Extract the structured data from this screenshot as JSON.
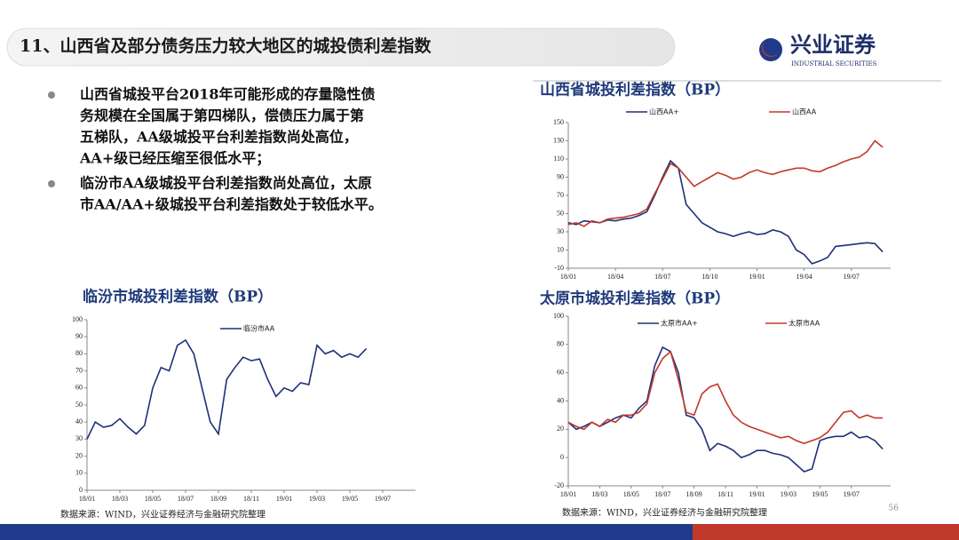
{
  "header": {
    "title": "11、山西省及部分债务压力较大地区的城投债利差指数",
    "logo": "兴业证券",
    "logo_en": "INDUSTRIAL SECURITIES"
  },
  "bullets": [
    [
      "山西省城投平台2018年可能形成的存量隐性债",
      "务规模在全国属于第四梯队，偿债压力属于第",
      "五梯队，AA级城投平台利差指数尚处高位，",
      "AA+级已经压缩至很低水平；"
    ],
    [
      "临汾市AA级城投平台利差指数尚处高位，太原",
      "市AA/AA+级城投平台利差指数处于较低水平。"
    ]
  ],
  "sources": [
    "数据来源：WIND，兴业证券经济与金融研究院整理",
    "数据来源：WIND，兴业证券经济与金融研究院整理"
  ],
  "page_number": 56,
  "chart_data": [
    {
      "type": "line",
      "title": "山西省城投利差指数（BP）",
      "x": [
        0,
        0.5,
        1,
        1.5,
        2,
        2.5,
        3,
        3.5,
        4,
        4.5,
        5,
        5.5,
        6,
        6.5,
        7,
        7.5,
        8,
        8.5,
        9,
        9.5,
        10,
        10.5,
        11,
        11.5,
        12,
        12.5,
        13,
        13.5,
        14,
        14.5,
        15,
        15.5,
        16,
        16.5,
        17,
        17.5,
        18,
        18.5,
        19,
        19.5,
        20
      ],
      "xlim": [
        0,
        20.5
      ],
      "xticks": [
        {
          "value": 0,
          "label": "18/01"
        },
        {
          "value": 3,
          "label": "18/04"
        },
        {
          "value": 6,
          "label": "18/07"
        },
        {
          "value": 9,
          "label": "18/10"
        },
        {
          "value": 12,
          "label": "19/01"
        },
        {
          "value": 15,
          "label": "19/04"
        },
        {
          "value": 18,
          "label": "19/07"
        }
      ],
      "ylim": [
        -10,
        150
      ],
      "yticks": [
        -10,
        10,
        30,
        50,
        70,
        90,
        110,
        130,
        150
      ],
      "series": [
        {
          "name": "山西AA+",
          "color": "#1f2f7a",
          "values": [
            40,
            38,
            42,
            41,
            40,
            43,
            42,
            44,
            45,
            48,
            52,
            70,
            90,
            108,
            100,
            60,
            50,
            40,
            35,
            30,
            28,
            25,
            28,
            30,
            27,
            28,
            32,
            30,
            25,
            10,
            5,
            -5,
            -2,
            2,
            14,
            15,
            16,
            17,
            18,
            17,
            8
          ]
        },
        {
          "name": "山西AA",
          "color": "#c0392b",
          "values": [
            38,
            40,
            36,
            42,
            40,
            44,
            45,
            46,
            48,
            50,
            55,
            72,
            88,
            105,
            100,
            90,
            80,
            85,
            90,
            95,
            92,
            88,
            90,
            95,
            98,
            95,
            93,
            96,
            98,
            100,
            100,
            97,
            96,
            100,
            103,
            107,
            110,
            112,
            118,
            130,
            123
          ]
        }
      ]
    },
    {
      "type": "line",
      "title": "临汾市城投利差指数（BP）",
      "x": [
        0,
        0.5,
        1,
        1.5,
        2,
        2.5,
        3,
        3.5,
        4,
        4.5,
        5,
        5.5,
        6,
        6.5,
        7,
        7.5,
        8,
        8.5,
        9,
        9.5,
        10,
        10.5,
        11,
        11.5,
        12,
        12.5,
        13,
        13.5,
        14,
        14.5,
        15,
        15.5,
        16,
        16.5,
        17
      ],
      "xlim": [
        0,
        20
      ],
      "xticks": [
        {
          "value": 0,
          "label": "18/01"
        },
        {
          "value": 2,
          "label": "18/03"
        },
        {
          "value": 4,
          "label": "18/05"
        },
        {
          "value": 6,
          "label": "18/07"
        },
        {
          "value": 8,
          "label": "18/09"
        },
        {
          "value": 10,
          "label": "18/11"
        },
        {
          "value": 12,
          "label": "19/01"
        },
        {
          "value": 14,
          "label": "19/03"
        },
        {
          "value": 16,
          "label": "19/05"
        },
        {
          "value": 18,
          "label": "19/07"
        }
      ],
      "ylim": [
        0,
        100
      ],
      "yticks": [
        0,
        10,
        20,
        30,
        40,
        50,
        60,
        70,
        80,
        90,
        100
      ],
      "series": [
        {
          "name": "临汾市AA",
          "color": "#1f2f7a",
          "values": [
            30,
            40,
            37,
            38,
            42,
            37,
            33,
            38,
            60,
            72,
            70,
            85,
            88,
            80,
            60,
            40,
            33,
            65,
            72,
            78,
            76,
            77,
            65,
            55,
            60,
            58,
            63,
            62,
            85,
            80,
            82,
            78,
            80,
            78,
            83
          ]
        }
      ]
    },
    {
      "type": "line",
      "title": "太原市城投利差指数（BP）",
      "x": [
        0,
        0.5,
        1,
        1.5,
        2,
        2.5,
        3,
        3.5,
        4,
        4.5,
        5,
        5.5,
        6,
        6.5,
        7,
        7.5,
        8,
        8.5,
        9,
        9.5,
        10,
        10.5,
        11,
        11.5,
        12,
        12.5,
        13,
        13.5,
        14,
        14.5,
        15,
        15.5,
        16,
        16.5,
        17,
        17.5,
        18,
        18.5,
        19,
        19.5,
        20
      ],
      "xlim": [
        0,
        20.5
      ],
      "xticks": [
        {
          "value": 0,
          "label": "18/01"
        },
        {
          "value": 2,
          "label": "18/03"
        },
        {
          "value": 4,
          "label": "18/05"
        },
        {
          "value": 6,
          "label": "18/07"
        },
        {
          "value": 8,
          "label": "18/09"
        },
        {
          "value": 10,
          "label": "18/11"
        },
        {
          "value": 12,
          "label": "19/01"
        },
        {
          "value": 14,
          "label": "19/03"
        },
        {
          "value": 16,
          "label": "19/05"
        },
        {
          "value": 18,
          "label": "19/07"
        }
      ],
      "ylim": [
        -20,
        100
      ],
      "yticks": [
        -20,
        0,
        20,
        40,
        60,
        80,
        100
      ],
      "series": [
        {
          "name": "太原市AA+",
          "color": "#1f2f7a",
          "values": [
            25,
            20,
            22,
            25,
            22,
            25,
            28,
            30,
            28,
            35,
            40,
            65,
            78,
            75,
            60,
            30,
            28,
            20,
            5,
            10,
            8,
            5,
            0,
            2,
            5,
            5,
            3,
            2,
            0,
            -5,
            -10,
            -8,
            12,
            14,
            15,
            15,
            18,
            14,
            15,
            12,
            6
          ]
        },
        {
          "name": "太原市AA",
          "color": "#c0392b",
          "values": [
            25,
            22,
            20,
            25,
            22,
            27,
            25,
            30,
            30,
            32,
            38,
            60,
            70,
            75,
            55,
            32,
            30,
            45,
            50,
            52,
            40,
            30,
            25,
            22,
            20,
            18,
            16,
            14,
            15,
            12,
            10,
            12,
            14,
            18,
            25,
            32,
            33,
            28,
            30,
            28,
            28
          ]
        }
      ]
    }
  ]
}
